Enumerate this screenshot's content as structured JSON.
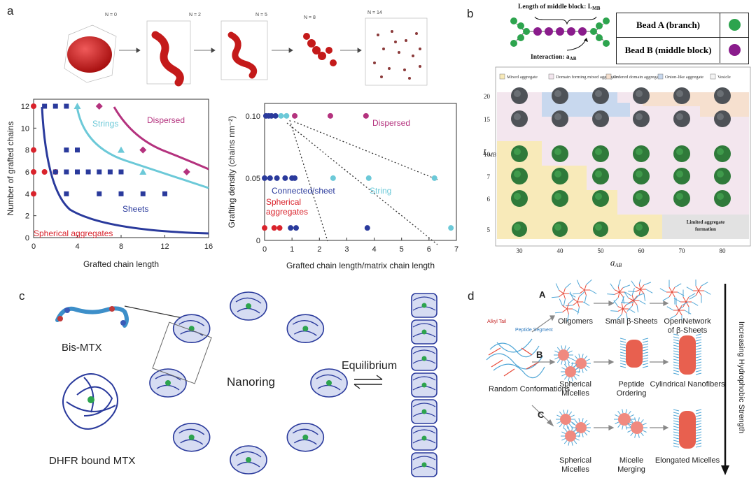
{
  "panels": {
    "a": "a",
    "b": "b",
    "c": "c",
    "d": "d"
  },
  "a_snapshots": [
    "N = 0",
    "N = 2",
    "N = 5",
    "N = 8",
    "N = 14"
  ],
  "a_left": {
    "xlabel": "Grafted chain length",
    "ylabel": "Number of grafted chains",
    "xticks": [
      "0",
      "4",
      "8",
      "12",
      "16"
    ],
    "yticks": [
      "0",
      "2",
      "4",
      "6",
      "8",
      "10",
      "12"
    ],
    "regions": {
      "dispersed": "Dispersed",
      "strings": "Strings",
      "sheets": "Sheets",
      "spherical": "Spherical aggregates"
    }
  },
  "a_right": {
    "xlabel": "Grafted chain length/matrix chain length",
    "ylabel": "Grafting density (chains nm⁻²)",
    "xticks": [
      "0",
      "1",
      "2",
      "3",
      "4",
      "5",
      "6",
      "7"
    ],
    "yticks": [
      "0",
      "0.05",
      "0.10"
    ],
    "regions": {
      "dispersed": "Dispersed",
      "string": "String",
      "sheet": "Connected/sheet",
      "spherical1": "Spherical",
      "spherical2": "aggregates"
    }
  },
  "b": {
    "length_label": "Length of middle block: L",
    "length_sub": "MB",
    "interaction_label": "Interaction: a",
    "interaction_sub": "AB",
    "legend_a": "Bead A (branch)",
    "legend_b": "Bead B (middle block)",
    "phases": [
      "Mixed aggregate",
      "Domain forming mixed aggregate",
      "Ordered domain aggregate",
      "Onion-like aggregate",
      "Vesicle"
    ],
    "yaxis": "L",
    "yaxis_sub": "MB",
    "xaxis": "a",
    "xaxis_sub": "AB",
    "yticks": [
      "20",
      "15",
      "10",
      "7",
      "6",
      "5"
    ],
    "xticks": [
      "30",
      "40",
      "50",
      "60",
      "70",
      "80"
    ],
    "limited": [
      "Limited aggregate",
      "formation"
    ]
  },
  "c": {
    "bis": "Bis-MTX",
    "dhfr": "DHFR bound MTX",
    "nanoring": "Nanoring",
    "equilibrium": "Equilibrium"
  },
  "d": {
    "alkyl": "Alkyl Tail",
    "peptide": "Peptide Segment",
    "routes": [
      "A",
      "B",
      "C"
    ],
    "random": "Random Conformations",
    "oligomers": "Oligomers",
    "small_sheets": "Small β-Sheets",
    "open_network": "OpenNetwork of β-Sheets",
    "spherical_micelles": "Spherical Micelles",
    "peptide_ordering": "Peptide Ordering",
    "cylindrical": "Cylindrical Nanofibers",
    "micelle_merging": "Micelle Merging",
    "elongated": "Elongated Micelles",
    "arrow_label": "Increasing Hydrophobic Strength"
  },
  "colors": {
    "red": "#d9232c",
    "blue": "#2a3a9c",
    "cyan": "#6cc9d8",
    "magenta": "#b4327e",
    "green": "#2da44e",
    "purple": "#8a1c8c"
  },
  "chart_data": [
    {
      "type": "scatter",
      "xlabel": "Grafted chain length",
      "ylabel": "Number of grafted chains",
      "xlim": [
        0,
        16
      ],
      "ylim": [
        0,
        12
      ],
      "series": [
        {
          "color": "#d9232c",
          "points": [
            [
              0,
              12
            ],
            [
              0,
              8
            ],
            [
              0,
              6
            ],
            [
              0,
              4
            ],
            [
              1,
              6
            ],
            [
              2,
              6
            ]
          ]
        },
        {
          "color": "#2a3a9c",
          "points": [
            [
              1,
              12
            ],
            [
              2,
              12
            ],
            [
              3,
              12
            ],
            [
              3,
              8
            ],
            [
              4,
              8
            ],
            [
              2,
              6
            ],
            [
              3,
              6
            ],
            [
              4,
              6
            ],
            [
              5,
              6
            ],
            [
              6,
              6
            ],
            [
              7,
              6
            ],
            [
              8,
              6
            ],
            [
              3,
              4
            ],
            [
              6,
              4
            ],
            [
              8,
              4
            ],
            [
              10,
              4
            ],
            [
              12,
              4
            ]
          ]
        },
        {
          "color": "#6cc9d8",
          "points": [
            [
              4,
              12
            ],
            [
              8,
              8
            ],
            [
              10,
              6
            ]
          ]
        },
        {
          "color": "#b4327e",
          "points": [
            [
              6,
              12
            ],
            [
              10,
              8
            ],
            [
              14,
              6
            ]
          ]
        }
      ]
    },
    {
      "type": "scatter",
      "xlabel": "Grafted chain length/matrix chain length",
      "ylabel": "Grafting density (chains nm⁻²)",
      "xlim": [
        0,
        7
      ],
      "ylim": [
        0,
        0.11
      ],
      "series": [
        {
          "color": "#d9232c",
          "points": [
            [
              0,
              0.01
            ],
            [
              0.35,
              0.01
            ],
            [
              0.55,
              0.01
            ]
          ]
        },
        {
          "color": "#2a3a9c",
          "points": [
            [
              0.05,
              0.1
            ],
            [
              0.15,
              0.1
            ],
            [
              0.25,
              0.1
            ],
            [
              0.4,
              0.1
            ],
            [
              0,
              0.05
            ],
            [
              0.2,
              0.05
            ],
            [
              0.45,
              0.05
            ],
            [
              0.75,
              0.05
            ],
            [
              1.0,
              0.05
            ],
            [
              1.1,
              0.05
            ],
            [
              0.95,
              0.01
            ],
            [
              1.15,
              0.01
            ],
            [
              3.75,
              0.01
            ]
          ]
        },
        {
          "color": "#6cc9d8",
          "points": [
            [
              0.6,
              0.1
            ],
            [
              0.8,
              0.1
            ],
            [
              2.5,
              0.05
            ],
            [
              3.8,
              0.05
            ],
            [
              6.2,
              0.05
            ],
            [
              6.8,
              0.01
            ]
          ]
        },
        {
          "color": "#b4327e",
          "points": [
            [
              1.1,
              0.1
            ],
            [
              2.4,
              0.1
            ],
            [
              3.7,
              0.1
            ]
          ]
        }
      ]
    }
  ]
}
